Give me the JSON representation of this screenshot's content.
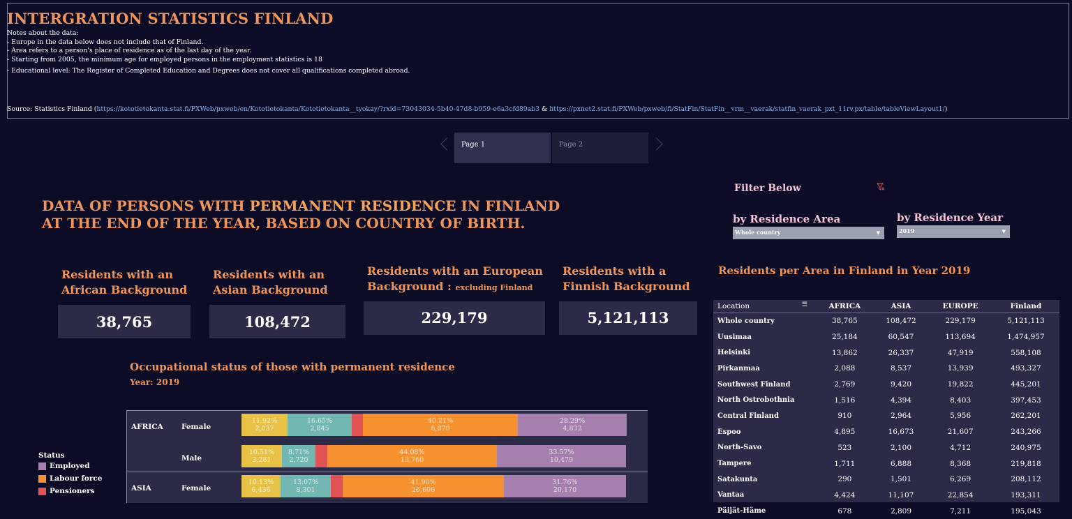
{
  "header": {
    "title": "INTERGRATION STATISTICS FINLAND",
    "notes_heading": "Notes about the data:",
    "notes": [
      "- Europe in the data below does not include that of Finland.",
      "- Area refers to a person's place of residence as of the last day of the year.",
      "- Starting from 2005, the minimum age for employed persons in the employment statistics is 18",
      "- Educational level: The Register of Completed Education and Degrees does not cover all qualifications completed abroad."
    ],
    "source_prefix": "Source: Statistics Finland (",
    "source_link1": "https://kototietokanta.stat.fi/PXWeb/pxweb/en/Kototietokanta/Kototietokanta__tyokay/?rxid=73043034-5b40-47d8-b959-e6a3cfd89ab3",
    "source_amp": " & ",
    "source_link2": "https://pxnet2.stat.fi/PXWeb/pxweb/fi/StatFin/StatFin__vrm__vaerak/statfin_vaerak_pxt_11rv.px/table/tableViewLayout1/",
    "source_suffix": ")"
  },
  "pager": {
    "page1": "Page 1",
    "page2": "Page 2"
  },
  "headline": {
    "line1_a": "DATA OF PERSONS WITH ",
    "line1_b": "PERMANENT RESIDENCE",
    "line1_c": " IN FINLAND",
    "line2": "AT THE END OF THE YEAR, BASED ON COUNTRY OF BIRTH."
  },
  "kpis": {
    "africa": {
      "title1": "Residents with an",
      "title2": "African Background",
      "value": "38,765"
    },
    "asia": {
      "title1": "Residents with an",
      "title2": "Asian Background",
      "value": "108,472"
    },
    "europe": {
      "title1": "Residents with an European",
      "title2": "Background : ",
      "title2_small": "excluding Finland",
      "value": "229,179"
    },
    "finland": {
      "title1": "Residents with a",
      "title2": "Finnish Background",
      "value": "5,121,113"
    }
  },
  "filters": {
    "heading": "Filter Below",
    "area_label": "by Residence Area",
    "area_value": "Whole country",
    "year_label": "by Residence Year",
    "year_value": "2019"
  },
  "table": {
    "title": "Residents per Area in Finland in Year 2019",
    "columns": [
      "Location",
      "AFRICA",
      "ASIA",
      "EUROPE",
      "Finland"
    ],
    "rows": [
      [
        "Whole country",
        "38,765",
        "108,472",
        "229,179",
        "5,121,113"
      ],
      [
        "Uusimaa",
        "25,184",
        "60,547",
        "113,694",
        "1,474,957"
      ],
      [
        "Helsinki",
        "13,862",
        "26,337",
        "47,919",
        "558,108"
      ],
      [
        "Pirkanmaa",
        "2,088",
        "8,537",
        "13,939",
        "493,327"
      ],
      [
        "Southwest Finland",
        "2,769",
        "9,420",
        "19,822",
        "445,201"
      ],
      [
        "North Ostrobothnia",
        "1,516",
        "4,394",
        "8,403",
        "397,453"
      ],
      [
        "Central Finland",
        "910",
        "2,964",
        "5,956",
        "262,201"
      ],
      [
        "Espoo",
        "4,895",
        "16,673",
        "21,607",
        "243,266"
      ],
      [
        "North-Savo",
        "523",
        "2,100",
        "4,712",
        "240,975"
      ],
      [
        "Tampere",
        "1,711",
        "6,888",
        "8,368",
        "219,818"
      ],
      [
        "Satakunta",
        "290",
        "1,501",
        "6,269",
        "208,112"
      ],
      [
        "Vantaa",
        "4,424",
        "11,107",
        "22,854",
        "193,311"
      ],
      [
        "Päijät-Häme",
        "678",
        "2,809",
        "7,211",
        "195,043"
      ]
    ]
  },
  "occupation": {
    "title": "Occupational status of those with permanent residence",
    "year": "Year: 2019",
    "legend_title": "Status",
    "legend": [
      {
        "name": "Employed",
        "color": "#a57fad"
      },
      {
        "name": "Labour force",
        "color": "#f5922f"
      },
      {
        "name": "Pensioners",
        "color": "#e15255"
      }
    ],
    "rows": [
      {
        "region": "AFRICA",
        "sex": "Female",
        "segments": [
          {
            "pct": "11.92%",
            "val": "2,037",
            "color": "#e8c147",
            "frac": 0.1192
          },
          {
            "pct": "16.65%",
            "val": "2,845",
            "color": "#72b7b2",
            "frac": 0.1665
          },
          {
            "pct": "",
            "val": "",
            "color": "#e15255",
            "frac": 0.0293
          },
          {
            "pct": "40.21%",
            "val": "6,870",
            "color": "#f5922f",
            "frac": 0.4021
          },
          {
            "pct": "28.29%",
            "val": "4,833",
            "color": "#a57fad",
            "frac": 0.2829
          }
        ]
      },
      {
        "region": "",
        "sex": "Male",
        "segments": [
          {
            "pct": "10.51%",
            "val": "3,281",
            "color": "#e8c147",
            "frac": 0.1051
          },
          {
            "pct": "8.71%",
            "val": "2,720",
            "color": "#72b7b2",
            "frac": 0.0871
          },
          {
            "pct": "",
            "val": "",
            "color": "#e15255",
            "frac": 0.0313
          },
          {
            "pct": "44.08%",
            "val": "13,760",
            "color": "#f5922f",
            "frac": 0.4408
          },
          {
            "pct": "33.57%",
            "val": "10,479",
            "color": "#a57fad",
            "frac": 0.3357
          }
        ]
      },
      {
        "region": "ASIA",
        "sex": "Female",
        "segments": [
          {
            "pct": "10.13%",
            "val": "6,436",
            "color": "#e8c147",
            "frac": 0.1013
          },
          {
            "pct": "13.07%",
            "val": "8,301",
            "color": "#72b7b2",
            "frac": 0.1307
          },
          {
            "pct": "",
            "val": "",
            "color": "#e15255",
            "frac": 0.0314
          },
          {
            "pct": "41.90%",
            "val": "26,606",
            "color": "#f5922f",
            "frac": 0.419
          },
          {
            "pct": "31.76%",
            "val": "20,170",
            "color": "#a57fad",
            "frac": 0.3176
          }
        ]
      }
    ]
  }
}
